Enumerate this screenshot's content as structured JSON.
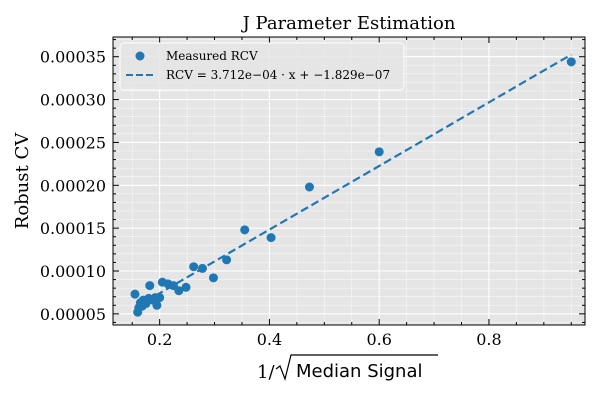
{
  "chart_data": {
    "type": "scatter",
    "title": "J Parameter Estimation",
    "ylabel": "Robust CV",
    "xlabel_prefix": "1/",
    "xlabel_sqrt_text": "Median Signal",
    "xlim": [
      0.115,
      0.975
    ],
    "ylim": [
      3.7e-05,
      0.000373
    ],
    "xticks": [
      0.2,
      0.4,
      0.6,
      0.8
    ],
    "xtick_labels": [
      "0.2",
      "0.4",
      "0.6",
      "0.8"
    ],
    "yticks": [
      5e-05,
      0.0001,
      0.00015,
      0.0002,
      0.00025,
      0.0003,
      0.00035
    ],
    "ytick_labels": [
      "0.00005",
      "0.00010",
      "0.00015",
      "0.00020",
      "0.00025",
      "0.00030",
      "0.00035"
    ],
    "grid": true,
    "legend_position": "top-left",
    "legend": {
      "scatter_label": "Measured RCV",
      "fit_label": "RCV = 3.712e−04 · x + −1.829e−07"
    },
    "series": [
      {
        "name": "Measured RCV",
        "kind": "scatter",
        "x": [
          0.155,
          0.16,
          0.162,
          0.165,
          0.168,
          0.17,
          0.175,
          0.18,
          0.182,
          0.188,
          0.192,
          0.195,
          0.2,
          0.205,
          0.215,
          0.225,
          0.235,
          0.248,
          0.262,
          0.278,
          0.298,
          0.322,
          0.355,
          0.403,
          0.473,
          0.6,
          0.95
        ],
        "y": [
          7.3e-05,
          5.2e-05,
          5.7e-05,
          6.3e-05,
          5.9e-05,
          6.6e-05,
          6.2e-05,
          6.8e-05,
          8.3e-05,
          6.6e-05,
          6.9e-05,
          6e-05,
          6.9e-05,
          8.7e-05,
          8.5e-05,
          8.3e-05,
          7.7e-05,
          8.1e-05,
          0.000105,
          0.000103,
          9.2e-05,
          0.000113,
          0.000148,
          0.000139,
          0.000198,
          0.000239,
          0.000344
        ]
      },
      {
        "name": "RCV fit",
        "kind": "line",
        "slope": 0.0003712,
        "intercept": -1.829e-07,
        "x_range": [
          0.155,
          0.95
        ]
      }
    ]
  },
  "colors": {
    "series": "#1f77b4",
    "plot_background": "#e5e5e5",
    "grid": "#ffffff",
    "axes": "#000000"
  }
}
